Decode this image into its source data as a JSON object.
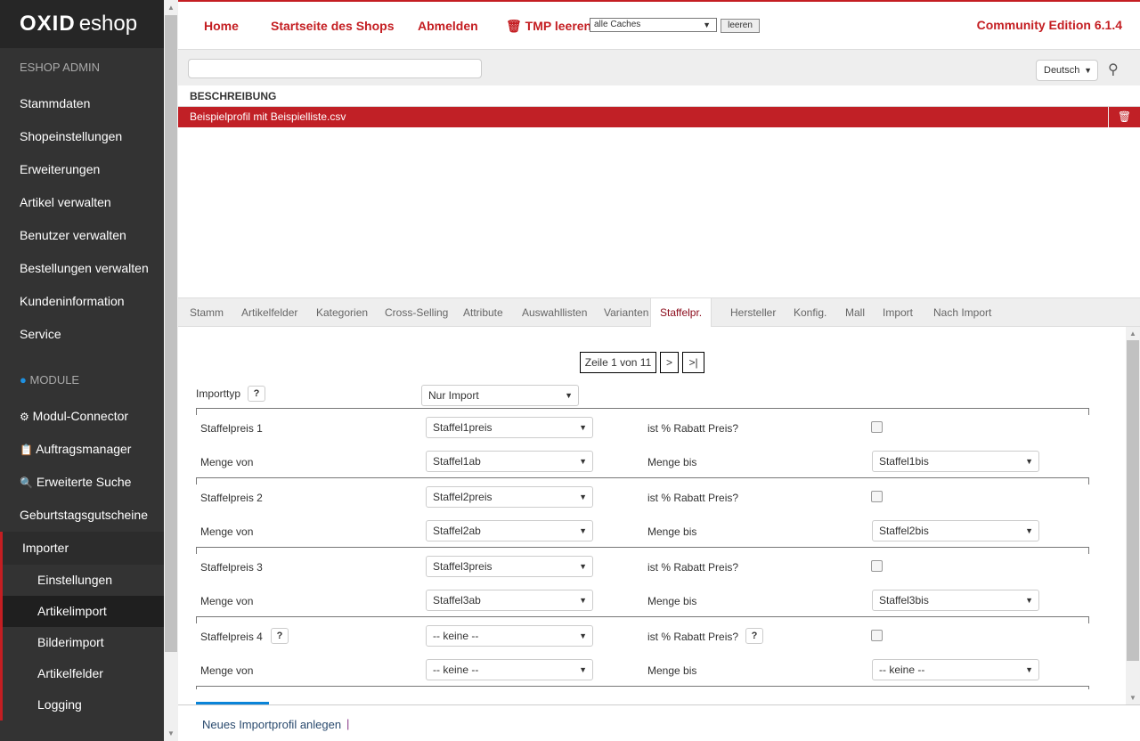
{
  "sidebar": {
    "logo": "OXID eshop",
    "logo_bold": "OXID",
    "logo_light": "eshop",
    "admin_label": "ESHOP ADMIN",
    "items": [
      "Stammdaten",
      "Shopeinstellungen",
      "Erweiterungen",
      "Artikel verwalten",
      "Benutzer verwalten",
      "Bestellungen verwalten",
      "Kundeninformation",
      "Service"
    ],
    "module_label": "MODULE",
    "modules": [
      "Modul-Connector",
      "Auftragsmanager",
      "Erweiterte Suche",
      "Geburtstagsgutscheine"
    ],
    "importer": "Importer",
    "importer_sub": [
      "Einstellungen",
      "Artikelimport",
      "Bilderimport",
      "Artikelfelder",
      "Logging"
    ],
    "active_sub": "Artikelimport"
  },
  "topbar": {
    "home": "Home",
    "shop_start": "Startseite des Shops",
    "logout": "Abmelden",
    "tmp_clear": "TMP leeren",
    "cache_select": "alle Caches",
    "clear_button": "leeren",
    "edition": "Community Edition 6.1.4"
  },
  "search": {
    "value": "",
    "language": "Deutsch"
  },
  "list": {
    "column_header": "BESCHREIBUNG",
    "rows": [
      {
        "label": "Beispielprofil mit Beispielliste.csv",
        "selected": true
      }
    ]
  },
  "tabs": [
    "Stamm",
    "Artikelfelder",
    "Kategorien",
    "Cross-Selling",
    "Attribute",
    "Auswahllisten",
    "Varianten",
    "Staffelpr.",
    "Hersteller",
    "Konfig.",
    "Mall",
    "Import",
    "Nach Import"
  ],
  "active_tab": "Staffelpr.",
  "pager": {
    "text": "Zeile 1 von 11",
    "next": ">",
    "last": ">|"
  },
  "form": {
    "import_type_label": "Importtyp",
    "import_type_value": "Nur Import",
    "help": "?",
    "groups": [
      {
        "price_label": "Staffelpreis 1",
        "price_value": "Staffel1preis",
        "rabatt_label": "ist % Rabatt Preis?",
        "rabatt_checked": false,
        "from_label": "Menge von",
        "from_value": "Staffel1ab",
        "to_label": "Menge bis",
        "to_value": "Staffel1bis"
      },
      {
        "price_label": "Staffelpreis 2",
        "price_value": "Staffel2preis",
        "rabatt_label": "ist % Rabatt Preis?",
        "rabatt_checked": false,
        "from_label": "Menge von",
        "from_value": "Staffel2ab",
        "to_label": "Menge bis",
        "to_value": "Staffel2bis"
      },
      {
        "price_label": "Staffelpreis 3",
        "price_value": "Staffel3preis",
        "rabatt_label": "ist % Rabatt Preis?",
        "rabatt_checked": false,
        "from_label": "Menge von",
        "from_value": "Staffel3ab",
        "to_label": "Menge bis",
        "to_value": "Staffel3bis"
      },
      {
        "price_label": "Staffelpreis 4",
        "price_value": "-- keine --",
        "rabatt_label": "ist % Rabatt Preis?",
        "rabatt_checked": false,
        "from_label": "Menge von",
        "from_value": "-- keine --",
        "to_label": "Menge bis",
        "to_value": "-- keine --"
      }
    ]
  },
  "footer": {
    "new_profile": "Neues Importprofil anlegen",
    "separator": "|"
  },
  "colors": {
    "accent": "#c41e22",
    "sidebar": "#333333",
    "link_blue": "#0a84d8"
  }
}
